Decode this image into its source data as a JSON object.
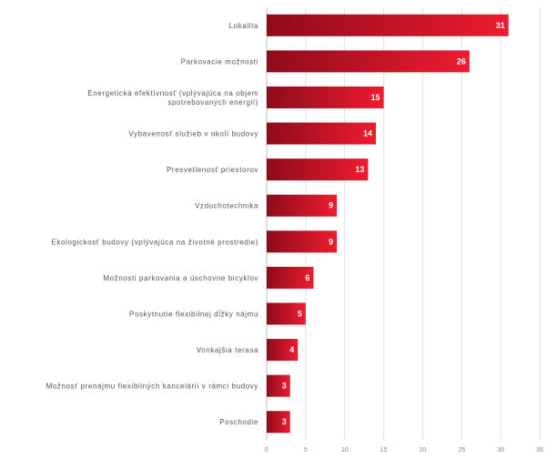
{
  "chart_data": {
    "type": "bar",
    "orientation": "horizontal",
    "categories": [
      "Lokalita",
      "Parkovacie možnosti",
      [
        "Energetická efektívnosť (vplývajúca na objem",
        "spotrebovaných energií)"
      ],
      "Vybavenosť služieb v okolí budovy",
      "Presvetlenosť priestorov",
      "Vzduchotechnika",
      "Ekologickosť budovy (vplývajúca na životné prostredie)",
      "Možnosti parkovania a úschovne bicyklov",
      "Poskytnutie flexibilnej dĺžky nájmu",
      "Vonkajšia terasa",
      "Možnosť prenájmu flexibilných kancelárií v rámci budovy",
      "Poschodie"
    ],
    "values": [
      31,
      26,
      15,
      14,
      13,
      9,
      9,
      6,
      5,
      4,
      3,
      3
    ],
    "xlim": [
      0,
      35
    ],
    "xticks": [
      "0",
      "5",
      "10",
      "15",
      "20",
      "25",
      "30",
      "35"
    ],
    "grid": true,
    "colors": {
      "bar_dark": "#8e0b1b",
      "bar_light": "#ee1c30"
    }
  }
}
